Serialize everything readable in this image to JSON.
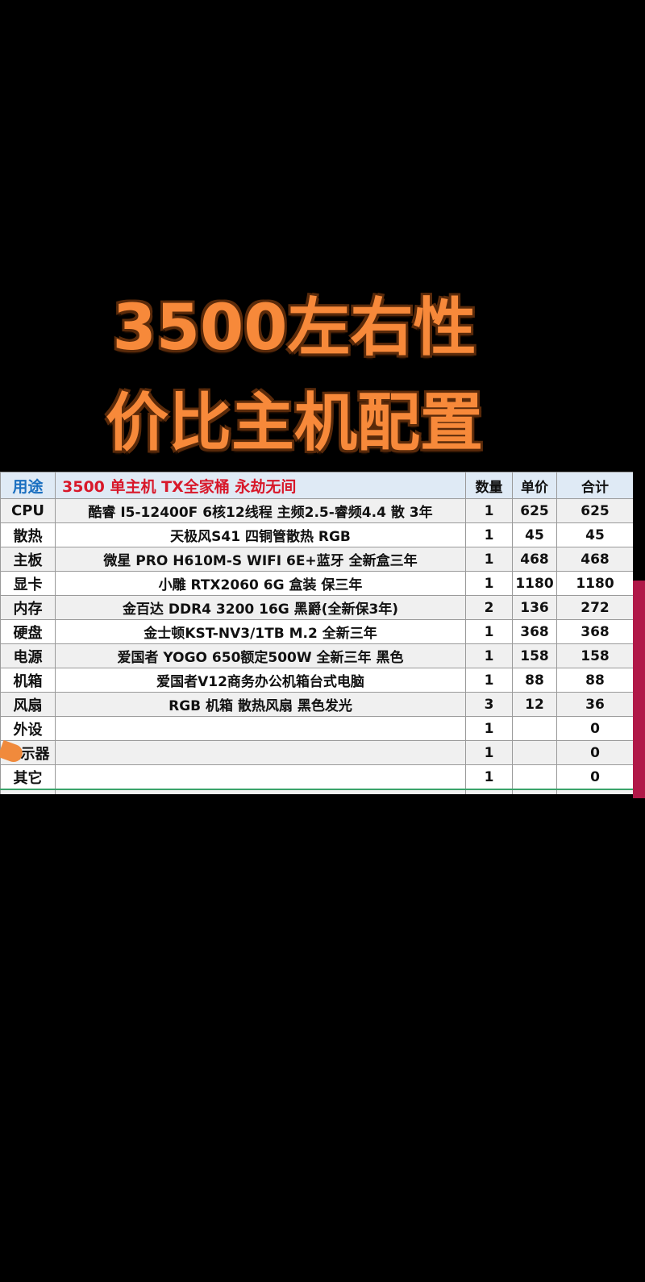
{
  "title": {
    "line1": "3500左右性",
    "line2": "价比主机配置"
  },
  "table": {
    "headers": {
      "use": "用途",
      "config": "3500 单主机 TX全家桶  永劫无间",
      "qty": "数量",
      "price": "单价",
      "total": "合计"
    },
    "rows": [
      {
        "use": "CPU",
        "desc": "酷睿 I5-12400F 6核12线程 主频2.5-睿频4.4 散 3年",
        "qty": "1",
        "price": "625",
        "total": "625"
      },
      {
        "use": "散热",
        "desc": "天极风S41 四铜管散热 RGB",
        "qty": "1",
        "price": "45",
        "total": "45"
      },
      {
        "use": "主板",
        "desc": "微星 PRO H610M-S WIFI 6E+蓝牙  全新盒三年",
        "qty": "1",
        "price": "468",
        "total": "468"
      },
      {
        "use": "显卡",
        "desc": "小雕 RTX2060 6G 盒装 保三年",
        "qty": "1",
        "price": "1180",
        "total": "1180"
      },
      {
        "use": "内存",
        "desc": "金百达 DDR4 3200 16G 黑爵(全新保3年)",
        "qty": "2",
        "price": "136",
        "total": "272"
      },
      {
        "use": "硬盘",
        "desc": "金士顿KST-NV3/1TB M.2  全新三年",
        "qty": "1",
        "price": "368",
        "total": "368"
      },
      {
        "use": "电源",
        "desc": "爱国者 YOGO 650额定500W  全新三年 黑色",
        "qty": "1",
        "price": "158",
        "total": "158"
      },
      {
        "use": "机箱",
        "desc": "爱国者V12商务办公机箱台式电脑",
        "qty": "1",
        "price": "88",
        "total": "88"
      },
      {
        "use": "风扇",
        "desc": "RGB  机箱 散热风扇  黑色发光",
        "qty": "3",
        "price": "12",
        "total": "36"
      },
      {
        "use": "外设",
        "desc": "",
        "qty": "1",
        "price": "",
        "total": "0"
      },
      {
        "use": "显示器",
        "desc": "",
        "qty": "1",
        "price": "",
        "total": "0"
      },
      {
        "use": "其它",
        "desc": "",
        "qty": "1",
        "price": "",
        "total": "0"
      }
    ]
  }
}
